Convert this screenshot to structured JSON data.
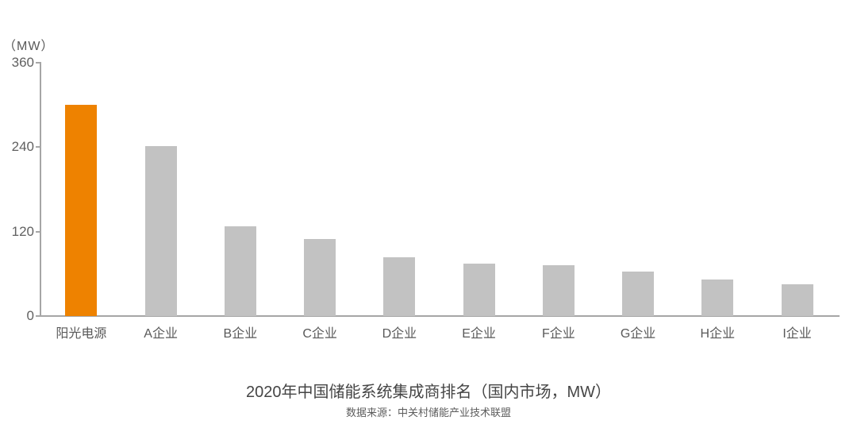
{
  "chart_data": {
    "type": "bar",
    "title": "2020年中国储能系统集成商排名（国内市场，MW）",
    "source": "数据来源：中关村储能产业技术联盟",
    "ylabel": "（MW）",
    "xlabel": "",
    "categories": [
      "阳光电源",
      "A企业",
      "B企业",
      "C企业",
      "D企业",
      "E企业",
      "F企业",
      "G企业",
      "H企业",
      "I企业"
    ],
    "values": [
      300,
      242,
      127,
      109,
      84,
      74,
      72,
      63,
      52,
      45
    ],
    "highlight_index": 0,
    "highlight_color": "#EE8200",
    "bar_color": "#C2C2C2",
    "axis_color": "#A6A6A6",
    "yticks": [
      0,
      120,
      240,
      360
    ],
    "ylim": [
      0,
      360
    ],
    "grid": false,
    "legend": "none"
  }
}
